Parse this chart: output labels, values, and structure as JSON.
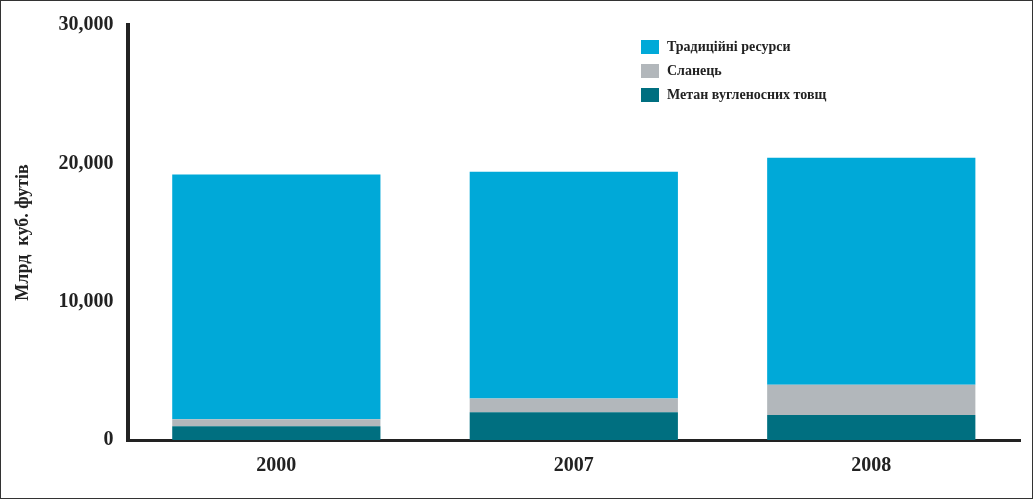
{
  "chart_data": {
    "type": "bar",
    "stacked": true,
    "ylabel": "Млрд  куб. футів",
    "categories": [
      "2000",
      "2007",
      "2008"
    ],
    "series": [
      {
        "name": "Метан вугленосних товщ",
        "color": "#006f80",
        "values": [
          1000,
          2000,
          1800
        ]
      },
      {
        "name": "Сланець",
        "color": "#b2b7bb",
        "values": [
          500,
          1000,
          2200
        ]
      },
      {
        "name": "Традиційні ресурси",
        "color": "#00a9d8",
        "values": [
          17700,
          16400,
          16400
        ]
      }
    ],
    "ylim": [
      0,
      30000
    ],
    "yticks": [
      {
        "value": 0,
        "label": "0"
      },
      {
        "value": 10000,
        "label": "10,000"
      },
      {
        "value": 20000,
        "label": "20,000"
      },
      {
        "value": 30000,
        "label": "30,000"
      }
    ],
    "grid": false,
    "legend": "top right"
  }
}
